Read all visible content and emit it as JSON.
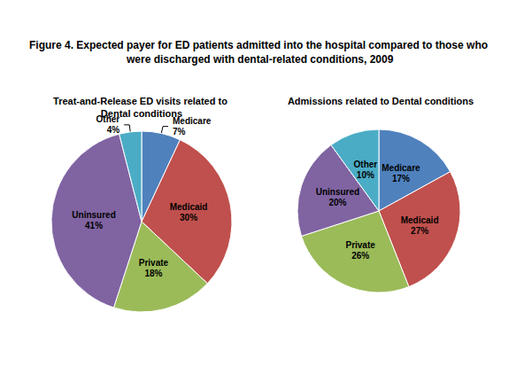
{
  "title": "Figure 4. Expected payer for ED patients admitted into the hospital compared to those who were discharged with dental-related conditions, 2009",
  "chart_data": [
    {
      "type": "pie",
      "title": "Treat-and-Release ED visits related to Dental conditions",
      "categories": [
        "Medicare",
        "Medicaid",
        "Private",
        "Uninsured",
        "Other"
      ],
      "values": [
        7,
        30,
        18,
        41,
        4
      ],
      "value_labels": [
        "7%",
        "30%",
        "18%",
        "41%",
        "4%"
      ],
      "colors": [
        "#4f81bd",
        "#c0504d",
        "#9bbb59",
        "#8064a2",
        "#4bacc6"
      ],
      "data_labels": true
    },
    {
      "type": "pie",
      "title": "Admissions related to Dental conditions",
      "categories": [
        "Medicare",
        "Medicaid",
        "Private",
        "Uninsured",
        "Other"
      ],
      "values": [
        17,
        27,
        26,
        20,
        10
      ],
      "value_labels": [
        "17%",
        "27%",
        "26%",
        "20%",
        "10%"
      ],
      "colors": [
        "#4f81bd",
        "#c0504d",
        "#9bbb59",
        "#8064a2",
        "#4bacc6"
      ],
      "data_labels": true
    }
  ]
}
